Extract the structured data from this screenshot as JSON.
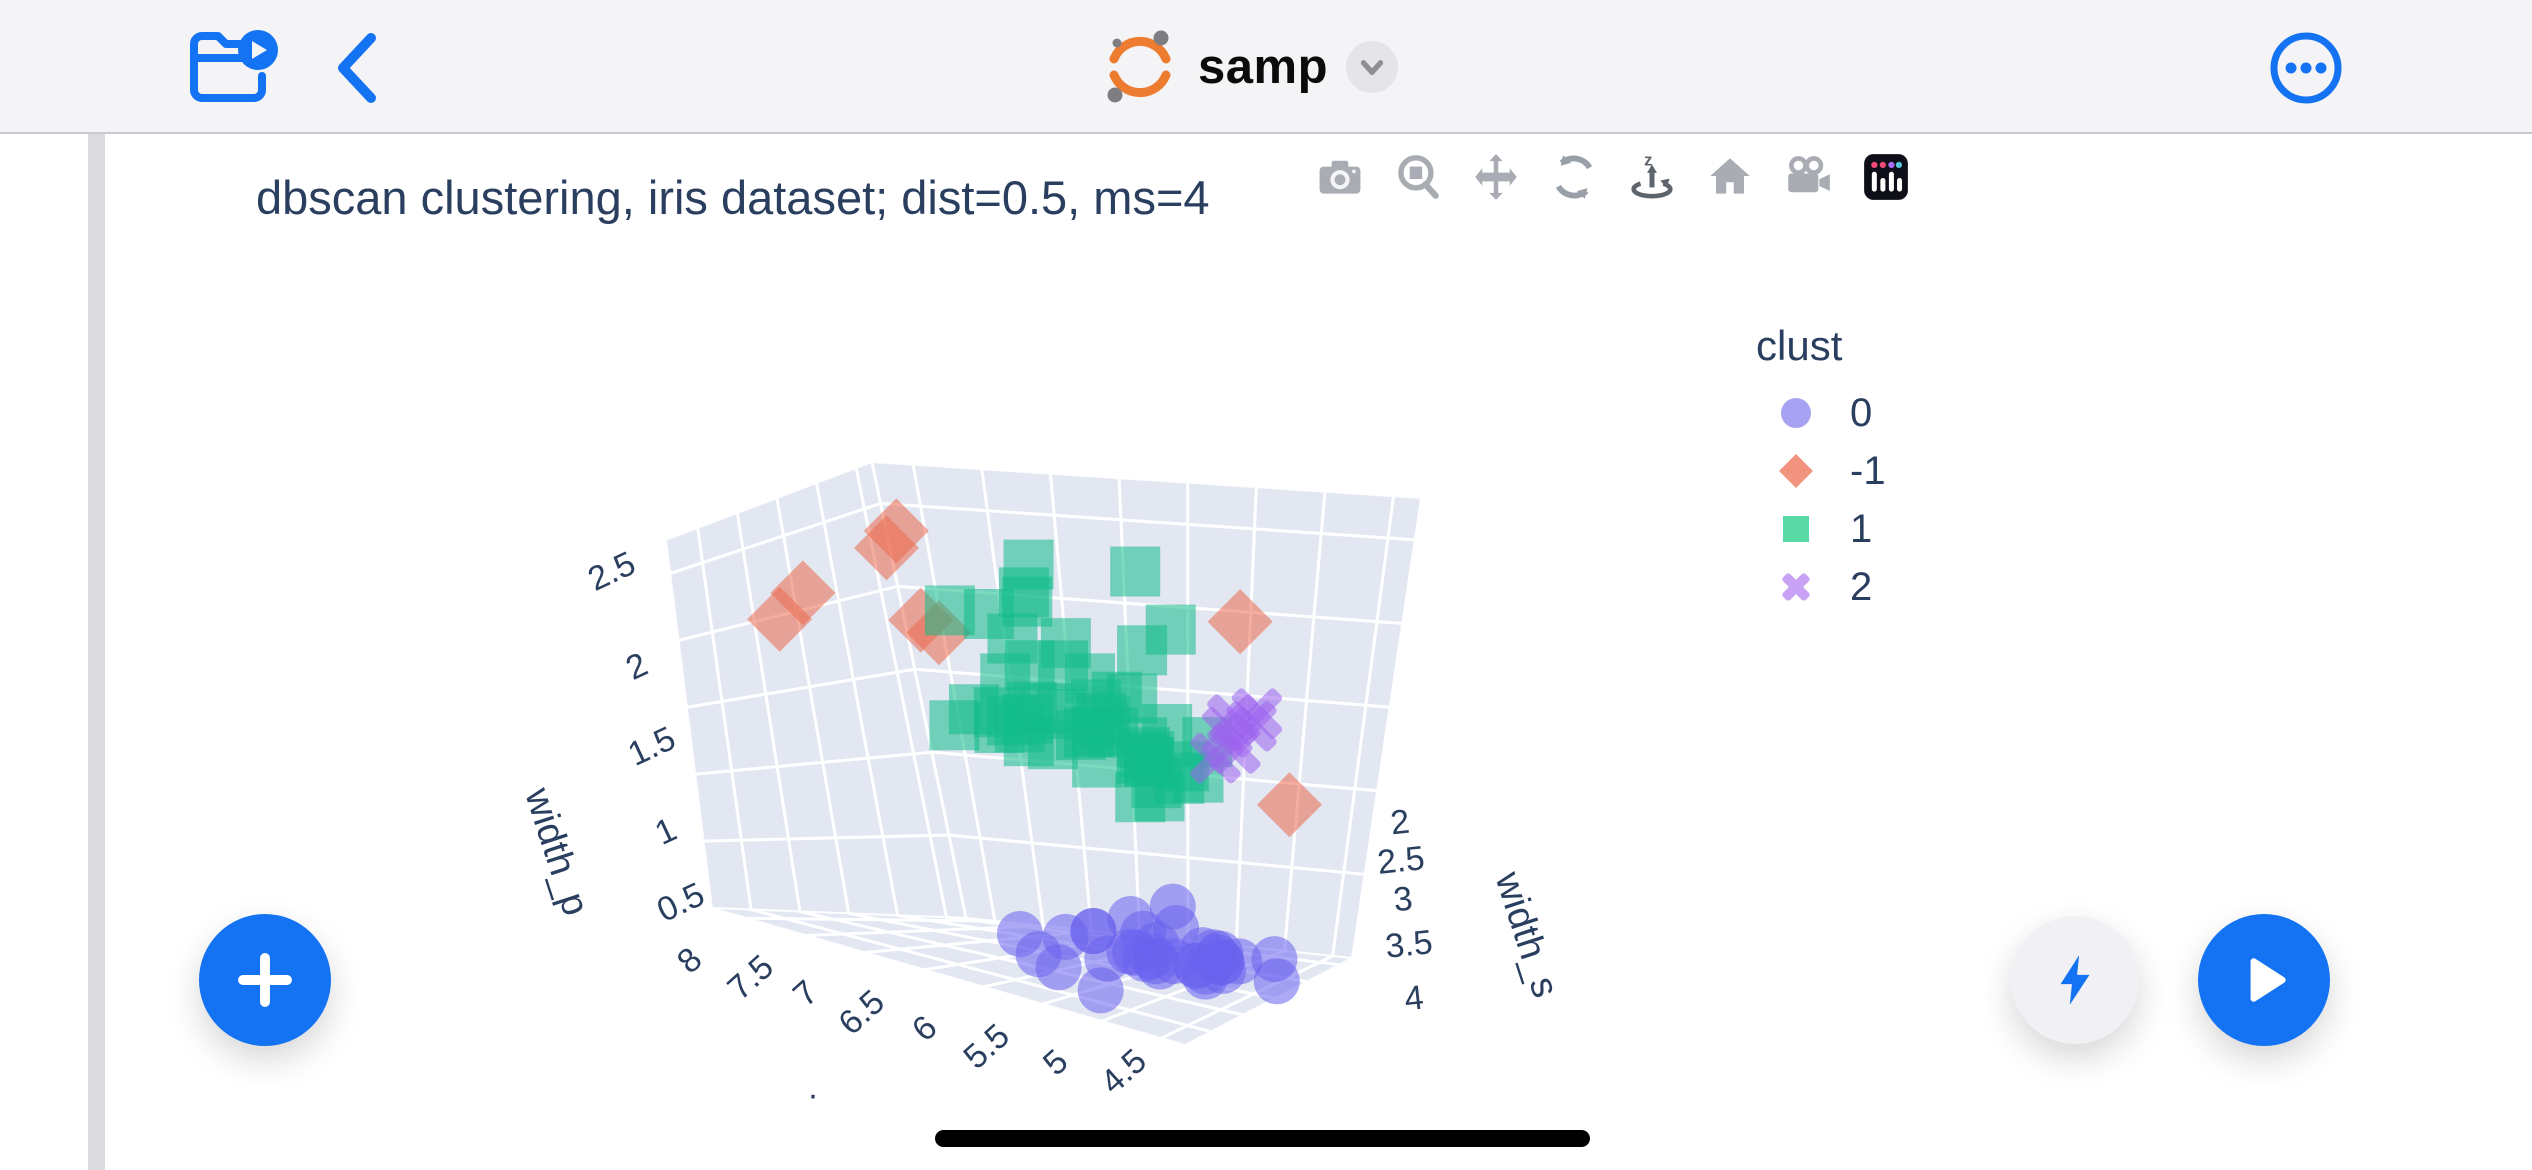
{
  "header": {
    "title": "samp",
    "open_folder_icon": "folder-play-icon",
    "back_icon": "chevron-left-icon",
    "dropdown_icon": "chevron-down-icon",
    "more_icon": "ellipsis-circle-icon"
  },
  "figure": {
    "title": "dbscan clustering, iris dataset; dist=0.5, ms=4"
  },
  "modebar": {
    "items": [
      "snapshot-camera",
      "zoom-3d",
      "pan-3d",
      "orbit-rotation",
      "turntable-rotation",
      "reset-camera-home",
      "reset-camera-last-save",
      "plotly-logo"
    ],
    "active_item": "turntable-rotation"
  },
  "legend": {
    "title": "clust",
    "items": [
      {
        "label": "0",
        "symbol": "circle",
        "color": "#A8A2F3"
      },
      {
        "label": "-1",
        "symbol": "diamond",
        "color": "#F2937F"
      },
      {
        "label": "1",
        "symbol": "square",
        "color": "#59D9A5"
      },
      {
        "label": "2",
        "symbol": "x",
        "color": "#C8A2F4"
      }
    ]
  },
  "colors": {
    "accent_blue": "#1473F2",
    "title_text": "#2a3f5f",
    "pane": "#E3E7F2",
    "grid": "#FFFFFF",
    "topbar_bg": "#F4F4F6",
    "logo_orange": "#ED7B30"
  },
  "chart_data": {
    "type": "scatter3d",
    "title": "dbscan clustering, iris dataset; dist=0.5, ms=4",
    "legend_title": "clust",
    "legend_position": "right",
    "grid": true,
    "axes": {
      "x": {
        "label": "",
        "clipped_label_fragment": ".",
        "ticks": [
          8,
          7.5,
          7,
          6.5,
          6,
          5.5,
          5,
          4.5
        ],
        "range": [
          8.3,
          4.3
        ]
      },
      "y": {
        "label": "width_s",
        "ticks": [
          2,
          2.5,
          3,
          3.5,
          4
        ],
        "range": [
          1.8,
          4.4
        ]
      },
      "z": {
        "label": "width_p",
        "ticks": [
          2.5,
          2,
          1.5,
          1,
          0.5
        ],
        "range": [
          0,
          2.75
        ]
      }
    },
    "series": [
      {
        "name": "0",
        "symbol": "circle",
        "color": "#A8A2F3",
        "marker_color": "#6A63EE",
        "points": [
          [
            5.1,
            3.5,
            0.2
          ],
          [
            4.9,
            3.0,
            0.2
          ],
          [
            4.7,
            3.2,
            0.2
          ],
          [
            4.6,
            3.1,
            0.2
          ],
          [
            5.0,
            3.6,
            0.2
          ],
          [
            5.4,
            3.9,
            0.4
          ],
          [
            4.6,
            3.4,
            0.3
          ],
          [
            5.0,
            3.4,
            0.2
          ],
          [
            4.4,
            2.9,
            0.2
          ],
          [
            4.9,
            3.1,
            0.1
          ],
          [
            5.4,
            3.7,
            0.2
          ],
          [
            4.8,
            3.4,
            0.2
          ],
          [
            4.8,
            3.0,
            0.1
          ],
          [
            4.3,
            3.0,
            0.1
          ],
          [
            5.8,
            4.0,
            0.2
          ],
          [
            5.7,
            4.4,
            0.4
          ],
          [
            5.4,
            3.9,
            0.4
          ],
          [
            5.1,
            3.5,
            0.3
          ],
          [
            5.7,
            3.8,
            0.3
          ],
          [
            5.1,
            3.8,
            0.3
          ],
          [
            5.4,
            3.4,
            0.2
          ],
          [
            5.1,
            3.7,
            0.4
          ],
          [
            4.6,
            3.6,
            0.2
          ],
          [
            5.1,
            3.3,
            0.5
          ],
          [
            4.8,
            3.4,
            0.2
          ],
          [
            5.0,
            3.0,
            0.2
          ],
          [
            5.0,
            3.4,
            0.4
          ],
          [
            5.2,
            3.5,
            0.2
          ],
          [
            5.2,
            3.4,
            0.2
          ],
          [
            4.7,
            3.2,
            0.2
          ],
          [
            4.8,
            3.1,
            0.2
          ],
          [
            5.4,
            3.4,
            0.4
          ],
          [
            5.2,
            4.1,
            0.1
          ],
          [
            5.5,
            4.2,
            0.2
          ]
        ]
      },
      {
        "name": "-1",
        "symbol": "diamond",
        "color": "#F2937F",
        "marker_color": "#EB6A4F",
        "points": [
          [
            7.7,
            3.8,
            2.3
          ],
          [
            7.9,
            3.8,
            2.1
          ],
          [
            7.7,
            2.6,
            2.5
          ],
          [
            7.6,
            2.9,
            2.45
          ],
          [
            7.4,
            2.9,
            2.0
          ],
          [
            7.2,
            3.0,
            1.95
          ],
          [
            5.4,
            2.1,
            2.0
          ],
          [
            4.7,
            2.4,
            1.0
          ]
        ]
      },
      {
        "name": "1",
        "symbol": "square",
        "color": "#59D9A5",
        "marker_color": "#12BB8A",
        "points": [
          [
            7.0,
            3.2,
            1.4
          ],
          [
            6.4,
            3.2,
            1.5
          ],
          [
            6.9,
            3.1,
            1.5
          ],
          [
            5.5,
            2.3,
            1.3
          ],
          [
            6.5,
            2.8,
            1.5
          ],
          [
            5.7,
            2.8,
            1.3
          ],
          [
            6.3,
            3.3,
            1.6
          ],
          [
            6.6,
            2.9,
            1.3
          ],
          [
            5.9,
            3.0,
            1.5
          ],
          [
            6.0,
            2.2,
            1.0
          ],
          [
            6.1,
            2.9,
            1.4
          ],
          [
            5.6,
            2.9,
            1.3
          ],
          [
            6.7,
            3.1,
            1.4
          ],
          [
            5.6,
            3.0,
            1.3
          ],
          [
            5.8,
            2.7,
            1.0
          ],
          [
            6.2,
            2.2,
            1.5
          ],
          [
            5.6,
            2.5,
            1.1
          ],
          [
            5.9,
            3.2,
            1.8
          ],
          [
            6.1,
            2.8,
            1.2
          ],
          [
            6.3,
            2.5,
            1.5
          ],
          [
            6.1,
            2.8,
            1.4
          ],
          [
            6.4,
            2.9,
            1.3
          ],
          [
            6.6,
            3.0,
            1.4
          ],
          [
            6.8,
            2.8,
            1.4
          ],
          [
            6.7,
            3.0,
            1.7
          ],
          [
            6.0,
            2.9,
            1.5
          ],
          [
            5.7,
            2.6,
            1.0
          ],
          [
            5.5,
            2.4,
            1.1
          ],
          [
            5.8,
            2.6,
            1.2
          ],
          [
            6.0,
            2.7,
            1.6
          ],
          [
            5.4,
            3.0,
            1.5
          ],
          [
            6.0,
            3.4,
            1.6
          ],
          [
            6.7,
            3.1,
            1.5
          ],
          [
            6.3,
            2.3,
            1.3
          ],
          [
            5.6,
            3.0,
            1.4
          ],
          [
            5.5,
            2.6,
            1.2
          ],
          [
            6.1,
            3.0,
            1.4
          ],
          [
            5.8,
            2.6,
            1.2
          ],
          [
            6.3,
            3.3,
            2.5
          ],
          [
            5.8,
            2.7,
            1.9
          ],
          [
            7.1,
            3.0,
            2.1
          ],
          [
            6.3,
            2.9,
            1.8
          ],
          [
            6.5,
            3.0,
            2.2
          ],
          [
            6.5,
            3.2,
            2.0
          ],
          [
            6.4,
            2.7,
            1.9
          ],
          [
            6.8,
            3.0,
            2.1
          ],
          [
            5.7,
            2.5,
            2.0
          ],
          [
            5.8,
            2.8,
            2.4
          ],
          [
            6.4,
            3.2,
            2.3
          ],
          [
            6.5,
            3.0,
            1.8
          ]
        ]
      },
      {
        "name": "2",
        "symbol": "x",
        "color": "#C8A2F4",
        "marker_color": "#9C63EE",
        "points": [
          [
            5.3,
            2.3,
            1.45
          ],
          [
            5.2,
            2.4,
            1.3
          ],
          [
            5.4,
            2.2,
            1.35
          ],
          [
            5.1,
            2.3,
            1.5
          ],
          [
            5.3,
            2.5,
            1.25
          ],
          [
            5.2,
            2.2,
            1.4
          ]
        ]
      }
    ]
  }
}
